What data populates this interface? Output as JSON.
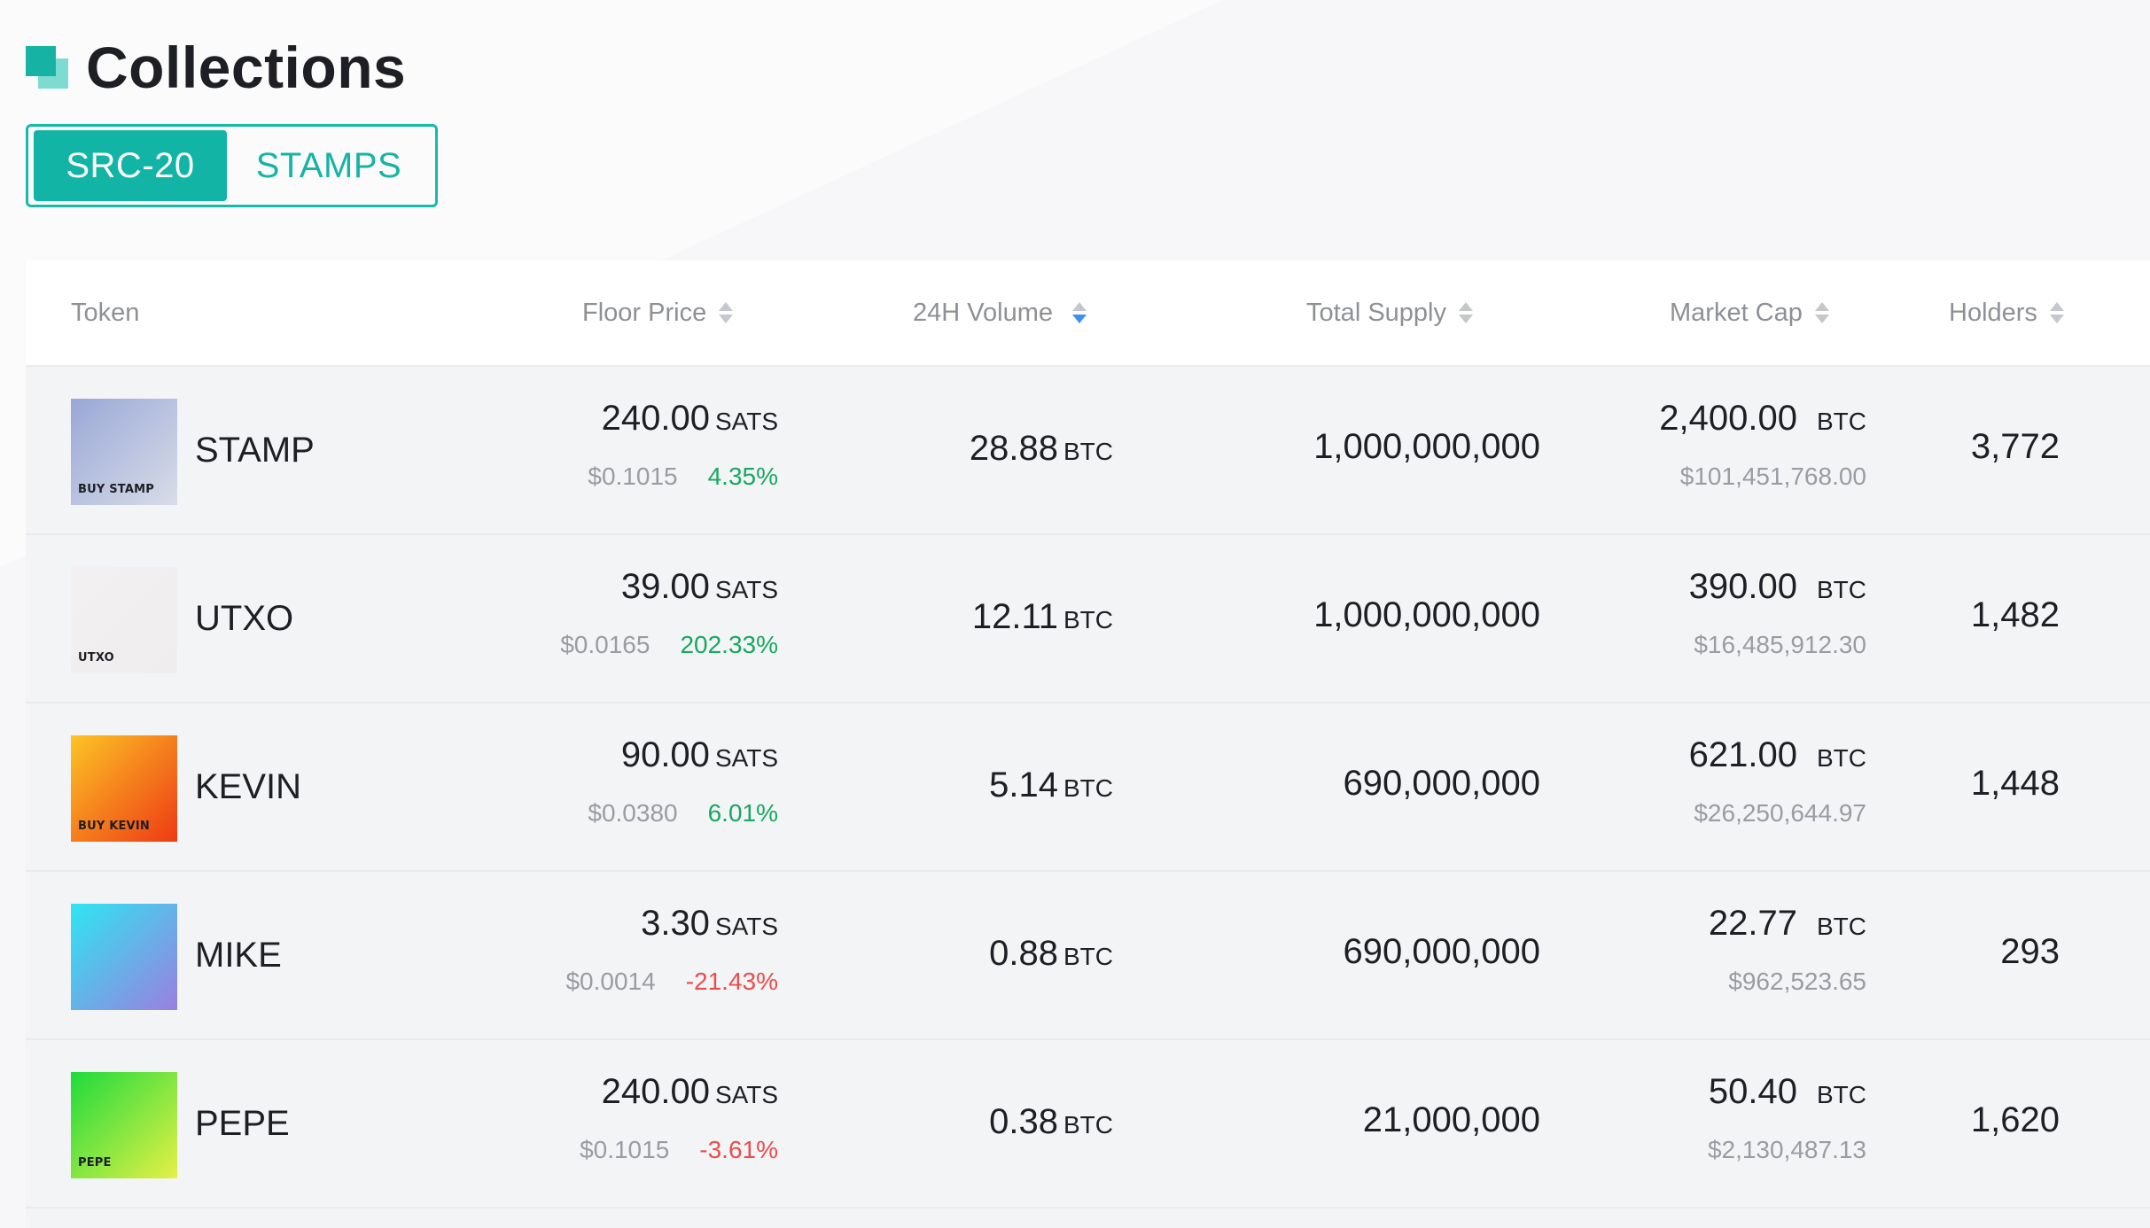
{
  "header": {
    "title": "Collections"
  },
  "tabs": [
    {
      "label": "SRC-20",
      "active": true
    },
    {
      "label": "STAMPS",
      "active": false
    }
  ],
  "colors": {
    "accent": "#17b9aa",
    "positive": "#18a860",
    "negative": "#ea4d4d",
    "sort_active": "#3f8ff0"
  },
  "table": {
    "columns": [
      "Token",
      "Floor Price",
      "24H Volume",
      "Total Supply",
      "Market Cap",
      "Holders"
    ],
    "active_sort_column": "24H Volume",
    "rows": [
      {
        "name": "STAMP",
        "thumb_text": "BUY STAMP",
        "thumb_colors": [
          "#9aa7d6",
          "#d8dde8"
        ],
        "floor": "240.00",
        "floor_unit": "SATS",
        "floor_usd": "$0.1015",
        "change": "4.35%",
        "change_dir": "up",
        "volume": "28.88",
        "volume_unit": "BTC",
        "supply": "1,000,000,000",
        "mcap": "2,400.00",
        "mcap_unit": "BTC",
        "mcap_usd": "$101,451,768.00",
        "holders": "3,772"
      },
      {
        "name": "UTXO",
        "thumb_text": "UTXO",
        "thumb_colors": [
          "#f2f0f0",
          "#efeded"
        ],
        "floor": "39.00",
        "floor_unit": "SATS",
        "floor_usd": "$0.0165",
        "change": "202.33%",
        "change_dir": "up",
        "volume": "12.11",
        "volume_unit": "BTC",
        "supply": "1,000,000,000",
        "mcap": "390.00",
        "mcap_unit": "BTC",
        "mcap_usd": "$16,485,912.30",
        "holders": "1,482"
      },
      {
        "name": "KEVIN",
        "thumb_text": "BUY KEVIN",
        "thumb_colors": [
          "#fcc426",
          "#ee3a14"
        ],
        "floor": "90.00",
        "floor_unit": "SATS",
        "floor_usd": "$0.0380",
        "change": "6.01%",
        "change_dir": "up",
        "volume": "5.14",
        "volume_unit": "BTC",
        "supply": "690,000,000",
        "mcap": "621.00",
        "mcap_unit": "BTC",
        "mcap_usd": "$26,250,644.97",
        "holders": "1,448"
      },
      {
        "name": "MIKE",
        "thumb_text": "",
        "thumb_colors": [
          "#2ee6f2",
          "#9b7fe0"
        ],
        "floor": "3.30",
        "floor_unit": "SATS",
        "floor_usd": "$0.0014",
        "change": "-21.43%",
        "change_dir": "down",
        "volume": "0.88",
        "volume_unit": "BTC",
        "supply": "690,000,000",
        "mcap": "22.77",
        "mcap_unit": "BTC",
        "mcap_usd": "$962,523.65",
        "holders": "293"
      },
      {
        "name": "PEPE",
        "thumb_text": "PEPE",
        "thumb_colors": [
          "#1edb3c",
          "#e6f046"
        ],
        "floor": "240.00",
        "floor_unit": "SATS",
        "floor_usd": "$0.1015",
        "change": "-3.61%",
        "change_dir": "down",
        "volume": "0.38",
        "volume_unit": "BTC",
        "supply": "21,000,000",
        "mcap": "50.40",
        "mcap_unit": "BTC",
        "mcap_usd": "$2,130,487.13",
        "holders": "1,620"
      }
    ]
  }
}
